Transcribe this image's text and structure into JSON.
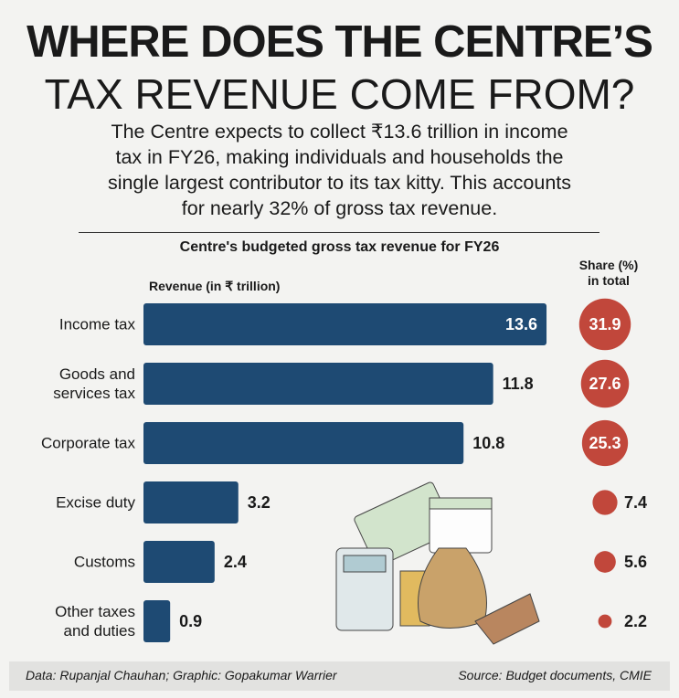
{
  "chart_data": {
    "type": "bar",
    "orientation": "horizontal",
    "title_line1": "WHERE DOES THE CENTRE’S",
    "title_line2": "TAX REVENUE COME FROM?",
    "subtitle": "The Centre expects to collect ₹13.6 trillion in income tax in FY26, making individuals and households the single largest contributor to its tax kitty. This accounts for nearly 32% of gross tax revenue.",
    "chart_title": "Centre's budgeted gross tax revenue for FY26",
    "categories": [
      "Income tax",
      "Goods and services tax",
      "Corporate tax",
      "Excise duty",
      "Customs",
      "Other taxes and duties"
    ],
    "series": [
      {
        "name": "Revenue (in ₹ trillion)",
        "color": "#1e4a73",
        "values": [
          13.6,
          11.8,
          10.8,
          3.2,
          2.4,
          0.9
        ]
      }
    ],
    "xlim": [
      0,
      14
    ],
    "shares": {
      "name": "Share (%) in total",
      "color": "#c1473b",
      "values": [
        31.9,
        27.6,
        25.3,
        7.4,
        5.6,
        2.2
      ]
    },
    "note_left": "Data: Rupanjal Chauhan; Graphic: Gopakumar Warrier",
    "note_right": "Source: Budget documents, CMIE"
  }
}
